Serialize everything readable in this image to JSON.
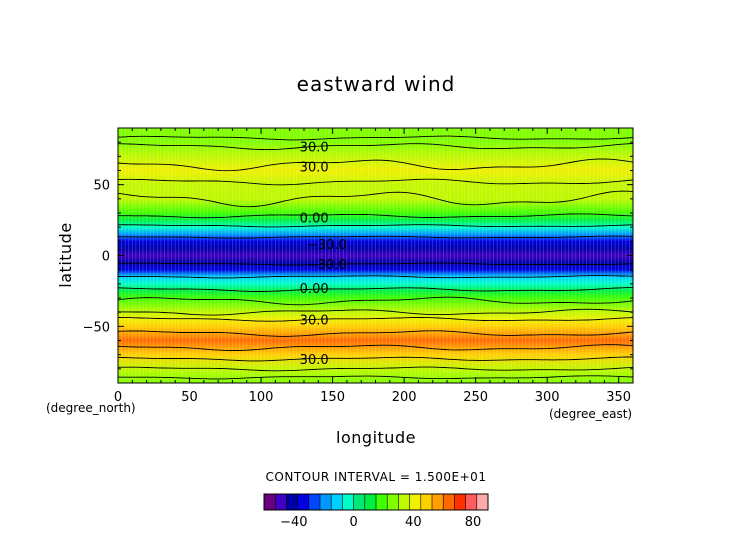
{
  "chart_data": {
    "type": "heatmap",
    "title": "eastward wind",
    "xlabel": "longitude",
    "ylabel": "latitude",
    "x_unit": "(degree_east)",
    "y_unit": "(degree_north)",
    "xlim": [
      0,
      360
    ],
    "ylim": [
      -90,
      90
    ],
    "x_ticks": [
      "0",
      "50",
      "100",
      "150",
      "200",
      "250",
      "300",
      "350"
    ],
    "y_ticks": [
      "50",
      "0",
      "−50"
    ],
    "contour_interval_text": "CONTOUR INTERVAL = 1.500E+01",
    "contour_labels": [
      {
        "text": "30.0",
        "lon": 127,
        "lat": 77
      },
      {
        "text": "30.0",
        "lon": 127,
        "lat": 63
      },
      {
        "text": "0.00",
        "lon": 127,
        "lat": 27
      },
      {
        "text": "−30.0",
        "lon": 132,
        "lat": 8
      },
      {
        "text": "−30.0",
        "lon": 132,
        "lat": -6
      },
      {
        "text": "0.00",
        "lon": 127,
        "lat": -23
      },
      {
        "text": "30.0",
        "lon": 127,
        "lat": -45
      },
      {
        "text": "30.0",
        "lon": 127,
        "lat": -73
      }
    ],
    "zonal_mean_profile": {
      "lat": [
        -90,
        -80,
        -70,
        -65,
        -60,
        -55,
        -50,
        -45,
        -40,
        -30,
        -25,
        -20,
        -15,
        -10,
        -5,
        0,
        5,
        10,
        15,
        20,
        25,
        30,
        40,
        50,
        60,
        70,
        80,
        90
      ],
      "value": [
        28,
        33,
        45,
        58,
        65,
        55,
        45,
        38,
        33,
        22,
        10,
        -2,
        -15,
        -32,
        -42,
        -48,
        -45,
        -35,
        -18,
        -3,
        8,
        22,
        33,
        33,
        40,
        36,
        27,
        28
      ]
    },
    "colorbar": {
      "min": -60,
      "max": 90,
      "step": 7.5,
      "tick_labels": [
        "−40",
        "0",
        "40",
        "80"
      ],
      "tick_values": [
        -40,
        0,
        40,
        80
      ]
    }
  }
}
